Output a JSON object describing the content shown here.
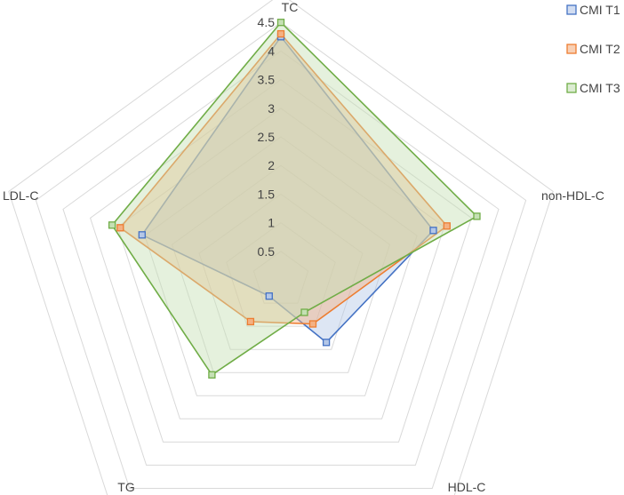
{
  "chart_data": {
    "type": "radar",
    "title": "",
    "axes": [
      "TC",
      "non-HDL-C",
      "HDL-C",
      "TG",
      "LDL-C"
    ],
    "ticks": [
      "0.5",
      "1",
      "1.5",
      "2",
      "2.5",
      "3",
      "3.5",
      "4",
      "4.5"
    ],
    "rmax": 5,
    "grid": true,
    "legend_position": "top-right",
    "series": [
      {
        "name": "CMI T1",
        "values": [
          4.25,
          2.8,
          1.35,
          0.35,
          2.55
        ],
        "stroke": "#4472C4",
        "fill": "#B4C7E7"
      },
      {
        "name": "CMI T2",
        "values": [
          4.3,
          3.05,
          0.95,
          0.9,
          2.95
        ],
        "stroke": "#ED7D31",
        "fill": "#F4B183"
      },
      {
        "name": "CMI T3",
        "values": [
          4.5,
          3.6,
          0.7,
          2.05,
          3.1
        ],
        "stroke": "#70AD47",
        "fill": "#C5E0B4"
      }
    ]
  }
}
